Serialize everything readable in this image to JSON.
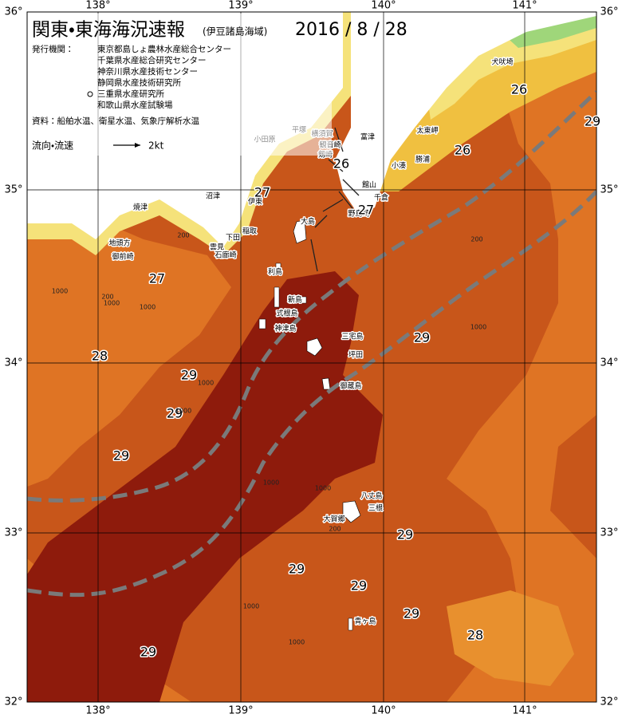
{
  "header": {
    "title": "関東・東海海況速報",
    "subtitle": "(伊豆諸島海域)",
    "date": "2016 / 8 / 28"
  },
  "agencies_label": "発行機関：",
  "agencies": [
    "東京都島しょ農林水産総合センター",
    "千葉県水産総合研究センター",
    "神奈川県水産技術センター",
    "静岡県水産技術研究所",
    "三重県水産研究所",
    "和歌山県水産試験場"
  ],
  "source": "資料：船舶水温、衛星水温、気象庁解析水温",
  "legend": {
    "label": "流向・流速",
    "speed": "2kt"
  },
  "lon_labels": [
    "138°",
    "139°",
    "140°",
    "141°"
  ],
  "lat_labels": [
    "36°",
    "35°",
    "34°",
    "33°",
    "32°"
  ],
  "places": [
    "犬吠埼",
    "太東岬",
    "勝浦",
    "小湊",
    "富津",
    "館山",
    "千倉",
    "野島崎",
    "横須賀",
    "観音崎",
    "剱崎",
    "平塚",
    "小田原",
    "伊東",
    "沼津",
    "焼津",
    "地頭方",
    "御前崎",
    "稲取",
    "下田",
    "雲見",
    "石廊崎",
    "大島",
    "利島",
    "新島",
    "式根島",
    "神津島",
    "三宅島",
    "坪田",
    "御蔵島",
    "八丈島",
    "三根",
    "大賀郷",
    "青ヶ島"
  ],
  "temperature_labels": [
    "26",
    "26",
    "26",
    "27",
    "27",
    "27",
    "28",
    "29",
    "29",
    "29",
    "29",
    "29",
    "29",
    "29",
    "29",
    "29",
    "28",
    "29"
  ],
  "depth_labels": [
    "1000",
    "1000",
    "200",
    "1000",
    "200",
    "1000",
    "1000",
    "1000",
    "1000",
    "200",
    "1000",
    "1000",
    "200",
    "1000"
  ]
}
